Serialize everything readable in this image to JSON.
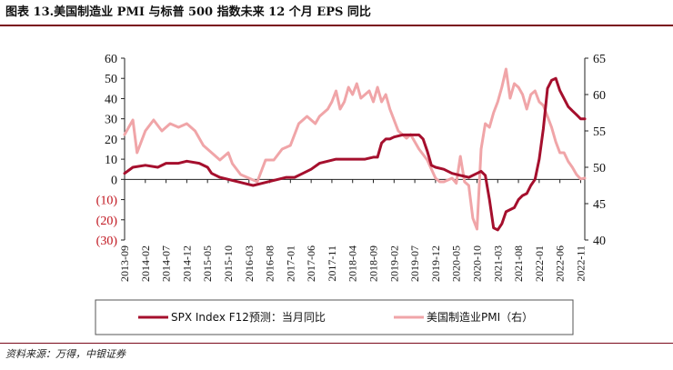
{
  "header": {
    "title": "图表 13.美国制造业 PMI 与标普 500 指数未来 12 个月 EPS 同比"
  },
  "footer": {
    "source": "资料来源：万得，中银证券"
  },
  "chart_data": {
    "type": "line",
    "title": "图表 13.美国制造业 PMI 与标普 500 指数未来 12 个月 EPS 同比",
    "ylim_left": [
      -30,
      60
    ],
    "ylim_right": [
      40,
      65
    ],
    "left_ticks": [
      60,
      50,
      40,
      30,
      20,
      10,
      0,
      -10,
      -20,
      -30
    ],
    "left_tick_labels": [
      "60",
      "50",
      "40",
      "30",
      "20",
      "10",
      "0",
      "(10)",
      "(20)",
      "(30)"
    ],
    "right_ticks": [
      65,
      60,
      55,
      50,
      45,
      40
    ],
    "right_tick_labels": [
      "65",
      "60",
      "55",
      "50",
      "45",
      "40"
    ],
    "x_tick_labels": [
      "2013-09",
      "2014-02",
      "2014-07",
      "2014-12",
      "2015-05",
      "2015-10",
      "2016-03",
      "2016-08",
      "2017-01",
      "2017-06",
      "2017-11",
      "2018-04",
      "2018-09",
      "2019-02",
      "2019-07",
      "2019-12",
      "2020-05",
      "2020-10",
      "2021-03",
      "2021-08",
      "2022-01",
      "2022-06",
      "2022-11"
    ],
    "x_start": "2013-09",
    "x_months": 111,
    "series": [
      {
        "name": "SPX Index F12预测：当月同比",
        "axis": "left",
        "color": "#a50f2d",
        "points": [
          [
            0,
            3
          ],
          [
            2,
            6
          ],
          [
            5,
            7
          ],
          [
            8,
            6
          ],
          [
            10,
            8
          ],
          [
            13,
            8
          ],
          [
            15,
            9
          ],
          [
            18,
            8
          ],
          [
            20,
            6
          ],
          [
            21,
            3
          ],
          [
            23,
            1
          ],
          [
            25,
            0
          ],
          [
            27,
            -1
          ],
          [
            29,
            -2
          ],
          [
            31,
            -3
          ],
          [
            33,
            -2
          ],
          [
            35,
            -1
          ],
          [
            37,
            0
          ],
          [
            39,
            1
          ],
          [
            41,
            1
          ],
          [
            43,
            3
          ],
          [
            45,
            5
          ],
          [
            47,
            8
          ],
          [
            49,
            9
          ],
          [
            51,
            10
          ],
          [
            54,
            10
          ],
          [
            56,
            10
          ],
          [
            58,
            10
          ],
          [
            60,
            11
          ],
          [
            61,
            11
          ],
          [
            62,
            18
          ],
          [
            63,
            20
          ],
          [
            64,
            20
          ],
          [
            65,
            21
          ],
          [
            67,
            22
          ],
          [
            69,
            22
          ],
          [
            71,
            22
          ],
          [
            72,
            20
          ],
          [
            73,
            14
          ],
          [
            74,
            7
          ],
          [
            75,
            6
          ],
          [
            77,
            5
          ],
          [
            79,
            3
          ],
          [
            81,
            2
          ],
          [
            83,
            1
          ],
          [
            85,
            3
          ],
          [
            86,
            4
          ],
          [
            87,
            2
          ],
          [
            88,
            -10
          ],
          [
            89,
            -24
          ],
          [
            90,
            -25
          ],
          [
            91,
            -22
          ],
          [
            92,
            -16
          ],
          [
            94,
            -14
          ],
          [
            95,
            -10
          ],
          [
            96,
            -8
          ],
          [
            97,
            -7
          ],
          [
            98,
            -3
          ],
          [
            99,
            0
          ],
          [
            100,
            10
          ],
          [
            101,
            25
          ],
          [
            102,
            45
          ],
          [
            103,
            49
          ],
          [
            104,
            50
          ],
          [
            105,
            44
          ],
          [
            106,
            40
          ],
          [
            107,
            36
          ],
          [
            108,
            34
          ],
          [
            109,
            32
          ],
          [
            110,
            30
          ],
          [
            111,
            30
          ]
        ]
      },
      {
        "name": "美国制造业PMI（右）",
        "axis": "right",
        "color": "#f0a5a8",
        "points": [
          [
            0,
            54.5
          ],
          [
            2,
            56.5
          ],
          [
            3,
            52
          ],
          [
            5,
            55
          ],
          [
            7,
            56.5
          ],
          [
            9,
            55
          ],
          [
            11,
            56
          ],
          [
            13,
            55.5
          ],
          [
            15,
            56
          ],
          [
            17,
            55
          ],
          [
            19,
            53
          ],
          [
            21,
            52
          ],
          [
            23,
            51
          ],
          [
            25,
            52
          ],
          [
            26,
            50.5
          ],
          [
            28,
            49
          ],
          [
            30,
            48.5
          ],
          [
            32,
            48
          ],
          [
            34,
            51
          ],
          [
            36,
            51
          ],
          [
            38,
            52.5
          ],
          [
            40,
            53
          ],
          [
            42,
            56
          ],
          [
            44,
            57
          ],
          [
            46,
            56
          ],
          [
            47,
            57
          ],
          [
            49,
            58
          ],
          [
            50,
            59
          ],
          [
            51,
            60.5
          ],
          [
            52,
            58
          ],
          [
            53,
            59
          ],
          [
            54,
            61
          ],
          [
            55,
            60
          ],
          [
            56,
            61.5
          ],
          [
            57,
            59.5
          ],
          [
            58,
            60
          ],
          [
            59,
            60.5
          ],
          [
            60,
            59
          ],
          [
            61,
            61
          ],
          [
            62,
            59
          ],
          [
            63,
            60
          ],
          [
            64,
            58
          ],
          [
            66,
            55
          ],
          [
            68,
            54
          ],
          [
            69,
            54.5
          ],
          [
            71,
            52.5
          ],
          [
            73,
            51
          ],
          [
            75,
            48.5
          ],
          [
            76,
            48
          ],
          [
            77,
            48
          ],
          [
            79,
            48.5
          ],
          [
            80,
            47.8
          ],
          [
            81,
            51.5
          ],
          [
            82,
            48
          ],
          [
            83,
            47.5
          ],
          [
            84,
            43
          ],
          [
            85,
            41.5
          ],
          [
            86,
            52.5
          ],
          [
            87,
            56
          ],
          [
            88,
            55.5
          ],
          [
            89,
            57.5
          ],
          [
            90,
            59
          ],
          [
            91,
            61
          ],
          [
            92,
            63.5
          ],
          [
            93,
            59.5
          ],
          [
            94,
            61.5
          ],
          [
            95,
            61
          ],
          [
            96,
            60
          ],
          [
            97,
            58
          ],
          [
            98,
            60
          ],
          [
            99,
            60.5
          ],
          [
            100,
            59
          ],
          [
            101,
            58.5
          ],
          [
            102,
            57
          ],
          [
            103,
            55.5
          ],
          [
            104,
            53.5
          ],
          [
            105,
            52
          ],
          [
            106,
            52
          ],
          [
            107,
            50.8
          ],
          [
            108,
            50
          ],
          [
            109,
            49
          ],
          [
            110,
            48.4
          ],
          [
            111,
            48.5
          ]
        ]
      }
    ]
  },
  "legend": {
    "items": [
      {
        "label": "SPX Index F12预测：当月同比",
        "color": "#a50f2d"
      },
      {
        "label": "美国制造业PMI（右）",
        "color": "#f0a5a8"
      }
    ]
  }
}
